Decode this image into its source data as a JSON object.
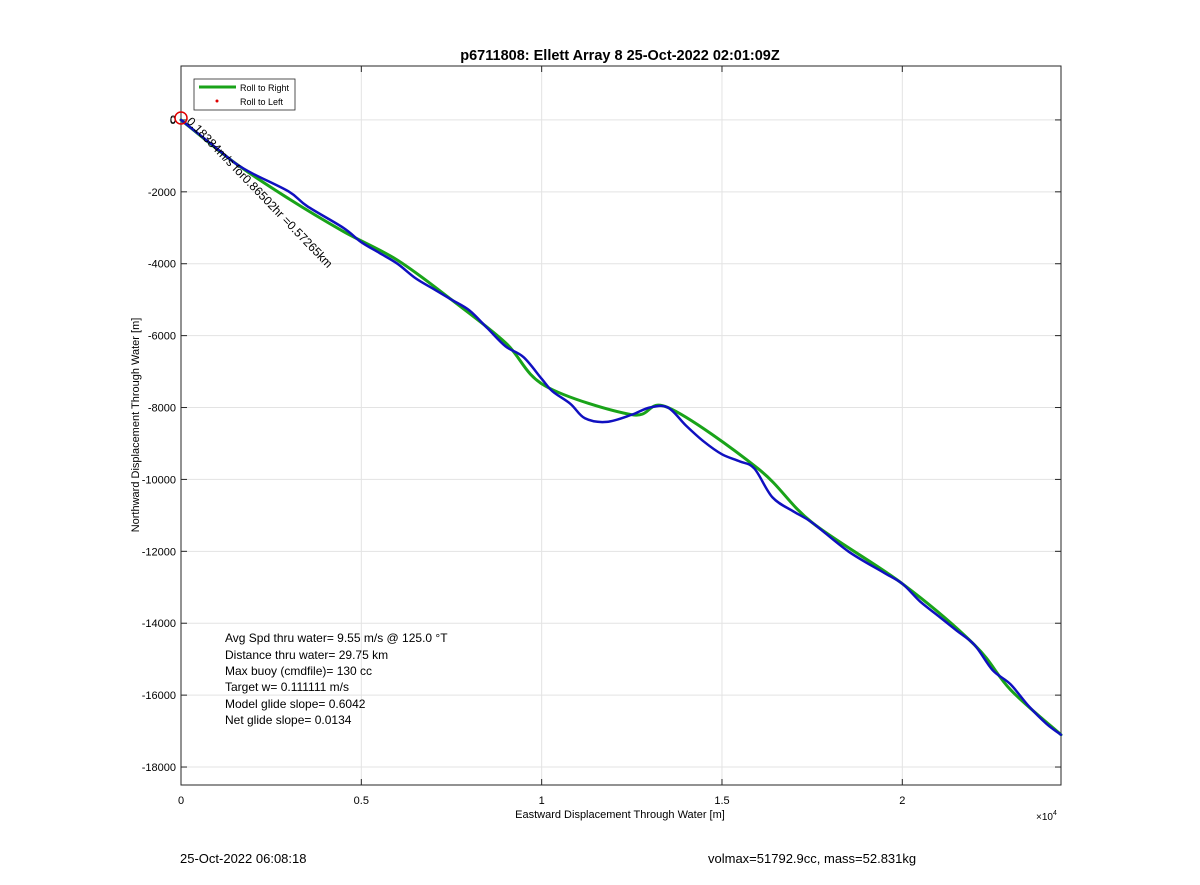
{
  "chart_data": {
    "type": "line",
    "title": "p6711808: Ellett Array 8 25-Oct-2022 02:01:09Z",
    "xlabel": "Eastward Displacement Through Water [m]",
    "ylabel": "Northward Displacement Through Water [m]",
    "x_exponent_label": "×10^4",
    "xlim": [
      0,
      24400
    ],
    "ylim": [
      -18500,
      1500
    ],
    "x_ticks": [
      0,
      5000,
      10000,
      15000,
      20000
    ],
    "x_tick_labels": [
      "0",
      "0.5",
      "1",
      "1.5",
      "2"
    ],
    "y_ticks": [
      0,
      -2000,
      -4000,
      -6000,
      -8000,
      -10000,
      -12000,
      -14000,
      -16000,
      -18000
    ],
    "y_tick_labels": [
      "0",
      "-2000",
      "-4000",
      "-6000",
      "-8000",
      "-10000",
      "-12000",
      "-14000",
      "-16000",
      "-18000"
    ],
    "grid": true,
    "legend_position": "top-left",
    "legend": [
      "Roll to Right",
      "Roll to Left"
    ],
    "series": [
      {
        "name": "Roll to Right",
        "color": "#19a319",
        "x": [
          0,
          1500,
          3000,
          4500,
          6000,
          7500,
          9000,
          10100,
          12500,
          13500,
          16000,
          17500,
          20000,
          22000,
          23000,
          24400
        ],
        "y": [
          0,
          -1200,
          -2200,
          -3100,
          -3900,
          -5000,
          -6200,
          -7400,
          -8200,
          -8000,
          -9700,
          -11200,
          -12900,
          -14600,
          -15850,
          -17100
        ]
      },
      {
        "name": "Roll to Left",
        "color": "#1010c0",
        "x": [
          0,
          500,
          1000,
          1500,
          2000,
          3000,
          3500,
          4500,
          5000,
          5500,
          6000,
          6500,
          7000,
          7500,
          8000,
          8500,
          9000,
          9500,
          10000,
          10300,
          10800,
          11200,
          11800,
          12500,
          13000,
          13500,
          14000,
          14500,
          15000,
          15500,
          15900,
          16400,
          17000,
          17500,
          18500,
          19500,
          20000,
          20500,
          21000,
          21500,
          22000,
          22500,
          23000,
          23500,
          24000,
          24400
        ],
        "y": [
          0,
          -400,
          -800,
          -1200,
          -1500,
          -2000,
          -2400,
          -3000,
          -3400,
          -3700,
          -4000,
          -4400,
          -4700,
          -5000,
          -5300,
          -5800,
          -6300,
          -6600,
          -7200,
          -7550,
          -7900,
          -8300,
          -8400,
          -8200,
          -8000,
          -8000,
          -8500,
          -8950,
          -9300,
          -9500,
          -9700,
          -10500,
          -10900,
          -11200,
          -12000,
          -12600,
          -12900,
          -13400,
          -13800,
          -14200,
          -14600,
          -15300,
          -15700,
          -16300,
          -16800,
          -17100
        ]
      }
    ],
    "start_marker_label": "0",
    "annotation": "0.18384m/s for0.86502hr =0.57265km",
    "stats": [
      "Avg Spd thru water=  9.55 m/s @ 125.0 °T",
      "Distance thru water= 29.75 km",
      "Max buoy (cmdfile)= 130 cc",
      "Target w= 0.111111 m/s",
      "Model glide slope= 0.6042",
      "Net glide slope= 0.0134"
    ]
  },
  "footer": {
    "timestamp": "25-Oct-2022 06:08:18",
    "vol_mass": "volmax=51792.9cc, mass=52.831kg"
  }
}
